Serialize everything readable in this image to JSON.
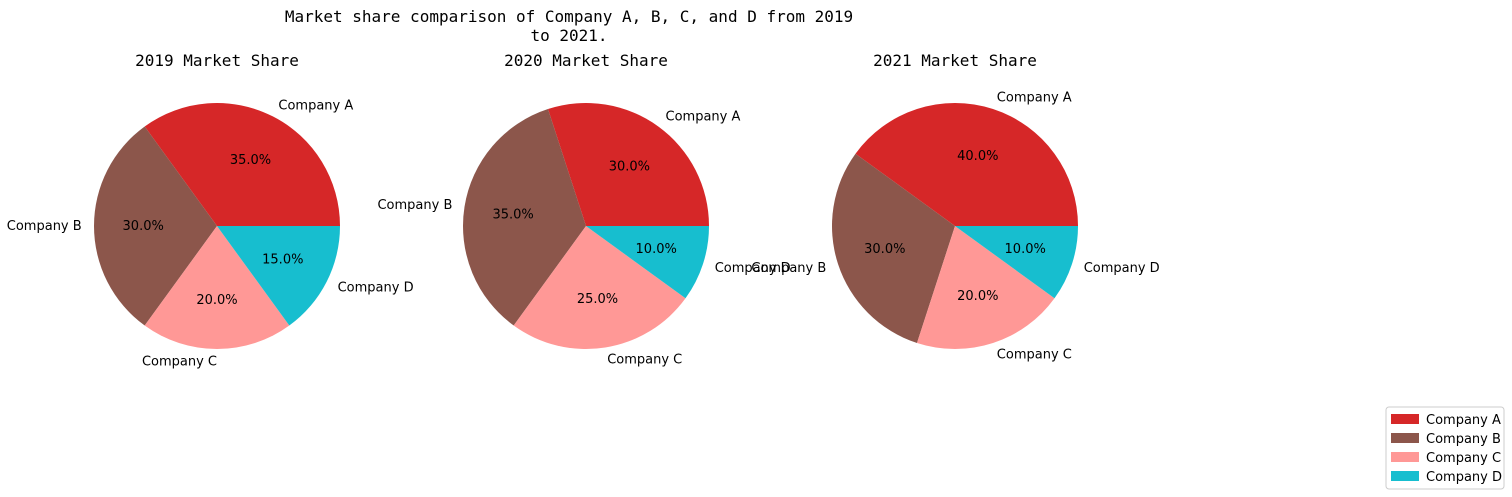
{
  "chart_data": {
    "type": "pie",
    "title_lines": [
      "Market share comparison of Company A, B, C, and D from 2019",
      "to 2021."
    ],
    "categories": [
      "Company A",
      "Company B",
      "Company C",
      "Company D"
    ],
    "colors": [
      "#d62728",
      "#8c564b",
      "#ff9896",
      "#17becf"
    ],
    "pies": [
      {
        "subtitle": "2019 Market Share",
        "values": [
          35.0,
          30.0,
          20.0,
          15.0
        ],
        "pct_labels": [
          "35.0%",
          "30.0%",
          "20.0%",
          "15.0%"
        ]
      },
      {
        "subtitle": "2020 Market Share",
        "values": [
          30.0,
          35.0,
          25.0,
          10.0
        ],
        "pct_labels": [
          "30.0%",
          "35.0%",
          "25.0%",
          "10.0%"
        ]
      },
      {
        "subtitle": "2021 Market Share",
        "values": [
          40.0,
          30.0,
          20.0,
          10.0
        ],
        "pct_labels": [
          "40.0%",
          "30.0%",
          "20.0%",
          "10.0%"
        ]
      }
    ],
    "legend_placement": "bottom-right",
    "grid": false
  }
}
